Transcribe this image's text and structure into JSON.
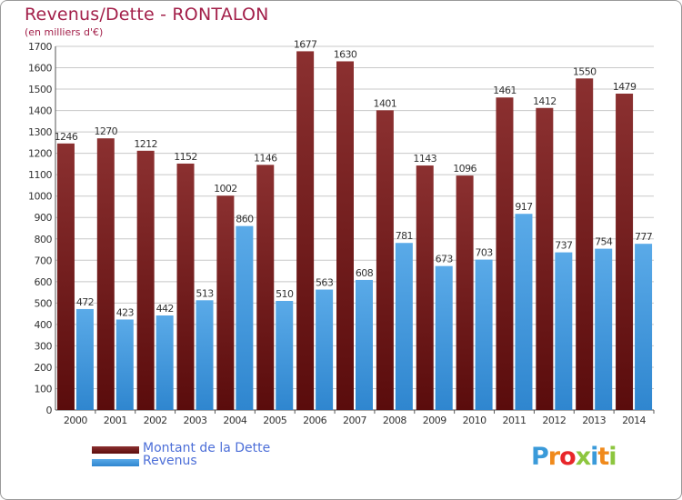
{
  "title": "Revenus/Dette - RONTALON",
  "subtitle": "(en milliers d'€)",
  "brand": "Proxiti",
  "colors": {
    "title": "#a3204a",
    "debt_top": "#8b3030",
    "debt_bottom": "#5a0c0c",
    "revenue_top": "#5aaae8",
    "revenue_bottom": "#2f86cf",
    "legend_text": "#4d6fd8",
    "grid": "#c8c8c8"
  },
  "chart_data": {
    "type": "bar",
    "categories": [
      "2000",
      "2001",
      "2002",
      "2003",
      "2004",
      "2005",
      "2006",
      "2007",
      "2008",
      "2009",
      "2010",
      "2011",
      "2012",
      "2013",
      "2014"
    ],
    "series": [
      {
        "name": "Montant de la Dette",
        "values": [
          1246,
          1270,
          1212,
          1152,
          1002,
          1146,
          1677,
          1630,
          1401,
          1143,
          1096,
          1461,
          1412,
          1550,
          1479
        ]
      },
      {
        "name": "Revenus",
        "values": [
          472,
          423,
          442,
          513,
          860,
          510,
          563,
          608,
          781,
          673,
          703,
          917,
          737,
          754,
          777
        ]
      }
    ],
    "ylim": [
      0,
      1700
    ],
    "yticks": [
      0,
      100,
      200,
      300,
      400,
      500,
      600,
      700,
      800,
      900,
      1000,
      1100,
      1200,
      1300,
      1400,
      1500,
      1600,
      1700
    ],
    "grid": true,
    "legend_position": "bottom-left"
  }
}
